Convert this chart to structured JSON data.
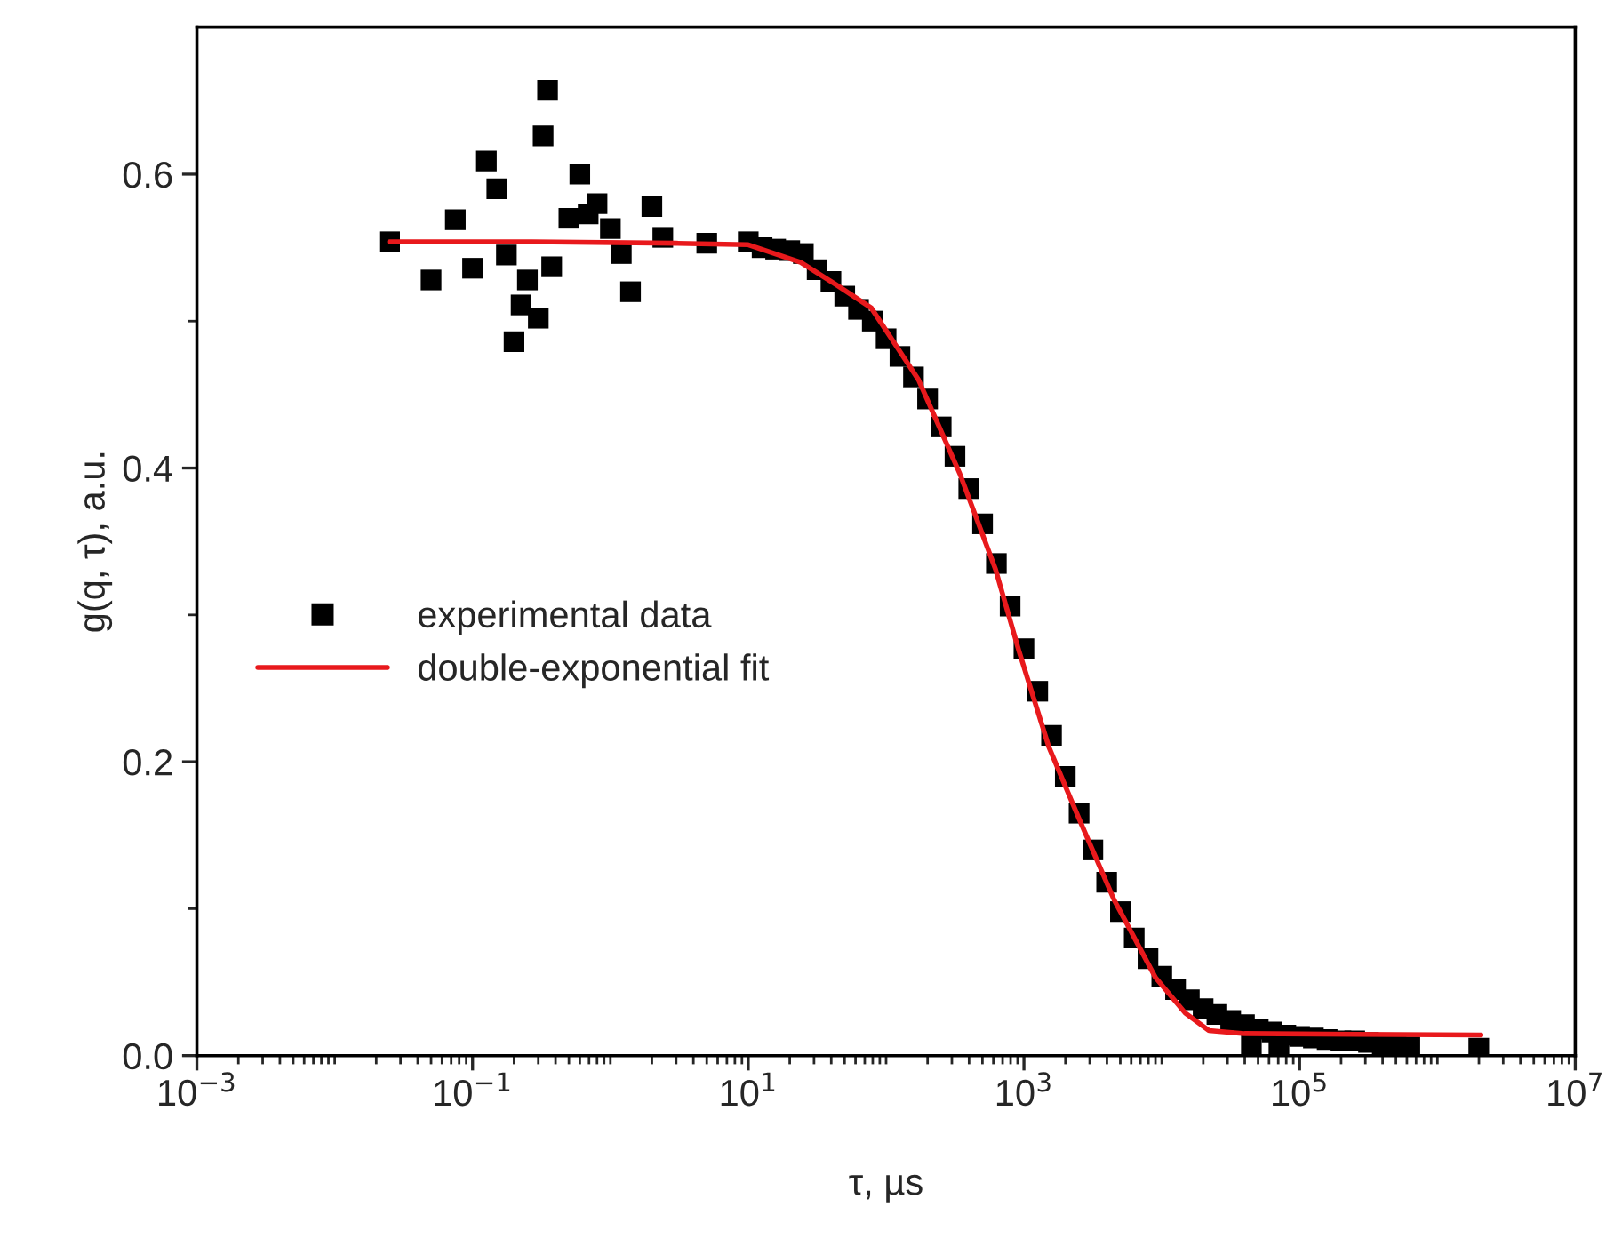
{
  "chart_data": {
    "type": "scatter",
    "xlabel": "τ, µs",
    "ylabel": "g(q, τ), a.u.",
    "log": "x",
    "grid": false,
    "legend": "left",
    "xlim": [
      0.001,
      10000000
    ],
    "xticks": [
      {
        "value": 0.001,
        "label": "10$^{−3}$"
      },
      {
        "value": 0.01,
        "label": null
      },
      {
        "value": 0.1,
        "label": "10$^{−1}$"
      },
      {
        "value": 1,
        "label": null
      },
      {
        "value": 10,
        "label": "10$^{1}$"
      },
      {
        "value": 100,
        "label": null
      },
      {
        "value": 1000,
        "label": "10$^{3}$"
      },
      {
        "value": 10000,
        "label": null
      },
      {
        "value": 100000,
        "label": "10$^{5}$"
      },
      {
        "value": 1000000,
        "label": null
      },
      {
        "value": 10000000,
        "label": "10$^{7}$"
      }
    ],
    "ylim": [
      0,
      0.7
    ],
    "yticks": [
      {
        "value": 0,
        "label": "0.0"
      },
      {
        "value": 0.1,
        "label": null
      },
      {
        "value": 0.2,
        "label": "0.2"
      },
      {
        "value": 0.3,
        "label": null
      },
      {
        "value": 0.4,
        "label": "0.4"
      },
      {
        "value": 0.5,
        "label": null
      },
      {
        "value": 0.6,
        "label": "0.6"
      }
    ],
    "series": [
      {
        "name": "experimental data",
        "marker": "square",
        "color": "#000000",
        "x": [
          0.025,
          0.05,
          0.075,
          0.1,
          0.126,
          0.15,
          0.176,
          0.2,
          0.225,
          0.25,
          0.3,
          0.325,
          0.35,
          0.375,
          0.5,
          0.6,
          0.69,
          0.8,
          1.0,
          1.2,
          1.4,
          2.0,
          2.4,
          5.0,
          10,
          12.6,
          15.8,
          20,
          25.1,
          31.6,
          39.8,
          50.1,
          63.1,
          79.4,
          100,
          126,
          158,
          200,
          251,
          316,
          398,
          501,
          631,
          794,
          1000,
          1259,
          1585,
          1995,
          2512,
          3162,
          3981,
          5012,
          6310,
          7943,
          10000,
          12589,
          15849,
          19953,
          25119,
          31623,
          39811,
          44668,
          50119,
          63096,
          70795,
          79433,
          100000,
          125893,
          158489,
          199526,
          251189,
          316228,
          398107,
          501187,
          630957,
          1995262
        ],
        "values": [
          0.554,
          0.528,
          0.569,
          0.536,
          0.609,
          0.59,
          0.545,
          0.486,
          0.511,
          0.528,
          0.502,
          0.626,
          0.657,
          0.537,
          0.57,
          0.6,
          0.573,
          0.58,
          0.563,
          0.546,
          0.52,
          0.578,
          0.557,
          0.553,
          0.554,
          0.55,
          0.549,
          0.548,
          0.546,
          0.535,
          0.527,
          0.517,
          0.508,
          0.5,
          0.488,
          0.476,
          0.462,
          0.447,
          0.428,
          0.408,
          0.386,
          0.362,
          0.335,
          0.306,
          0.277,
          0.248,
          0.218,
          0.19,
          0.165,
          0.14,
          0.118,
          0.098,
          0.08,
          0.066,
          0.054,
          0.045,
          0.038,
          0.032,
          0.028,
          0.024,
          0.021,
          0.008,
          0.018,
          0.016,
          0.007,
          0.014,
          0.013,
          0.012,
          0.011,
          0.01,
          0.01,
          0.009,
          0.008,
          0.007,
          0.006,
          0.005
        ]
      },
      {
        "name": "double-exponential fit",
        "type": "line",
        "marker": "none",
        "line_style": "solid",
        "color": "#e8191c",
        "x": [
          0.025,
          0.27,
          3.0,
          10,
          24,
          43,
          78,
          172,
          343,
          622,
          923,
          1517,
          2489,
          4508,
          9016,
          14791,
          21979,
          39811,
          2070000
        ],
        "values": [
          0.554,
          0.554,
          0.553,
          0.552,
          0.54,
          0.525,
          0.509,
          0.46,
          0.396,
          0.331,
          0.275,
          0.21,
          0.162,
          0.106,
          0.053,
          0.029,
          0.017,
          0.015,
          0.014
        ]
      }
    ]
  }
}
